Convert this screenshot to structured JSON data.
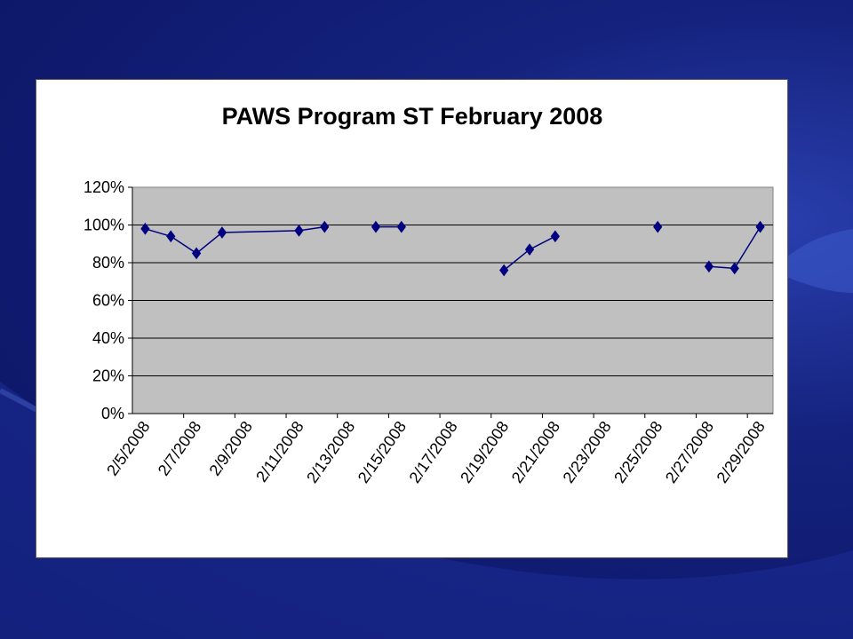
{
  "slide": {
    "background_color": "#15237f",
    "card_color": "#ffffff"
  },
  "chart_data": {
    "type": "line",
    "title": "PAWS Program ST February 2008",
    "xlabel": "",
    "ylabel": "",
    "x_tick_labels": [
      "2/5/2008",
      "2/7/2008",
      "2/9/2008",
      "2/11/2008",
      "2/13/2008",
      "2/15/2008",
      "2/17/2008",
      "2/19/2008",
      "2/21/2008",
      "2/23/2008",
      "2/25/2008",
      "2/27/2008",
      "2/29/2008"
    ],
    "y_tick_labels": [
      "0%",
      "20%",
      "40%",
      "60%",
      "80%",
      "100%",
      "120%"
    ],
    "ylim": [
      0,
      1.2
    ],
    "xlim": [
      "2008-02-05",
      "2008-02-29"
    ],
    "grid": "horizontal",
    "plot_background": "#c0c0c0",
    "line_color": "#000080",
    "marker": "diamond",
    "series": [
      {
        "points": [
          [
            "2008-02-05",
            0.98
          ],
          [
            "2008-02-06",
            0.94
          ],
          [
            "2008-02-07",
            0.85
          ],
          [
            "2008-02-08",
            0.96
          ],
          [
            "2008-02-11",
            0.97
          ],
          [
            "2008-02-12",
            0.99
          ],
          null,
          [
            "2008-02-14",
            0.99
          ],
          [
            "2008-02-15",
            0.99
          ],
          null,
          [
            "2008-02-19",
            0.76
          ],
          [
            "2008-02-20",
            0.87
          ],
          [
            "2008-02-21",
            0.94
          ],
          null,
          [
            "2008-02-25",
            0.99
          ],
          null,
          [
            "2008-02-27",
            0.78
          ],
          [
            "2008-02-28",
            0.77
          ],
          [
            "2008-02-29",
            0.99
          ]
        ]
      }
    ]
  }
}
